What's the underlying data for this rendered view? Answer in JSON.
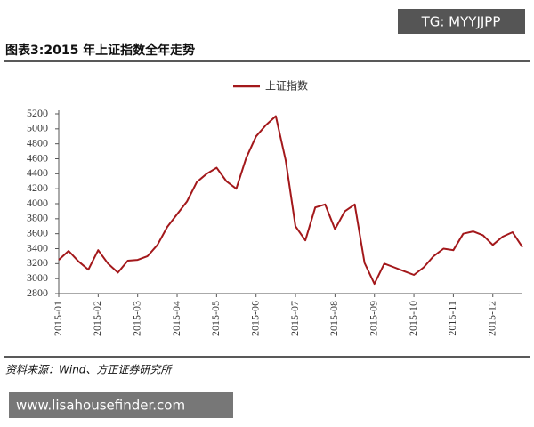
{
  "chart_data": {
    "type": "line",
    "title": "图表3:2015 年上证指数全年走势",
    "source": "资料来源：Wind、方正证券研究所",
    "categories": [
      "2015-01",
      null,
      null,
      null,
      "2015-02",
      null,
      null,
      null,
      "2015-03",
      null,
      null,
      null,
      "2015-04",
      null,
      null,
      null,
      "2015-05",
      null,
      null,
      null,
      "2015-06",
      null,
      null,
      null,
      "2015-07",
      null,
      null,
      null,
      "2015-08",
      null,
      null,
      null,
      "2015-09",
      null,
      null,
      null,
      "2015-10",
      null,
      null,
      null,
      "2015-11",
      null,
      null,
      null,
      "2015-12",
      null,
      null,
      null
    ],
    "series": [
      {
        "name": "上证指数",
        "color": "#a3181b",
        "values": [
          3250,
          3370,
          3230,
          3120,
          3380,
          3200,
          3080,
          3240,
          3250,
          3300,
          3450,
          3690,
          3860,
          4030,
          4290,
          4400,
          4480,
          4300,
          4200,
          4610,
          4900,
          5050,
          5170,
          4580,
          3700,
          3510,
          3950,
          3990,
          3660,
          3900,
          3990,
          3210,
          2930,
          3200,
          3150,
          3100,
          3050,
          3150,
          3300,
          3400,
          3380,
          3600,
          3630,
          3580,
          3450,
          3560,
          3620,
          3420
        ]
      }
    ],
    "ylim": [
      2800,
      5200
    ],
    "yticks": [
      2800,
      3000,
      3200,
      3400,
      3600,
      3800,
      4000,
      4200,
      4400,
      4600,
      4800,
      5000,
      5200
    ],
    "legend": "top"
  },
  "watermarks": [
    "TG: MYYJJPP",
    "www.lisahousefinder.com"
  ]
}
